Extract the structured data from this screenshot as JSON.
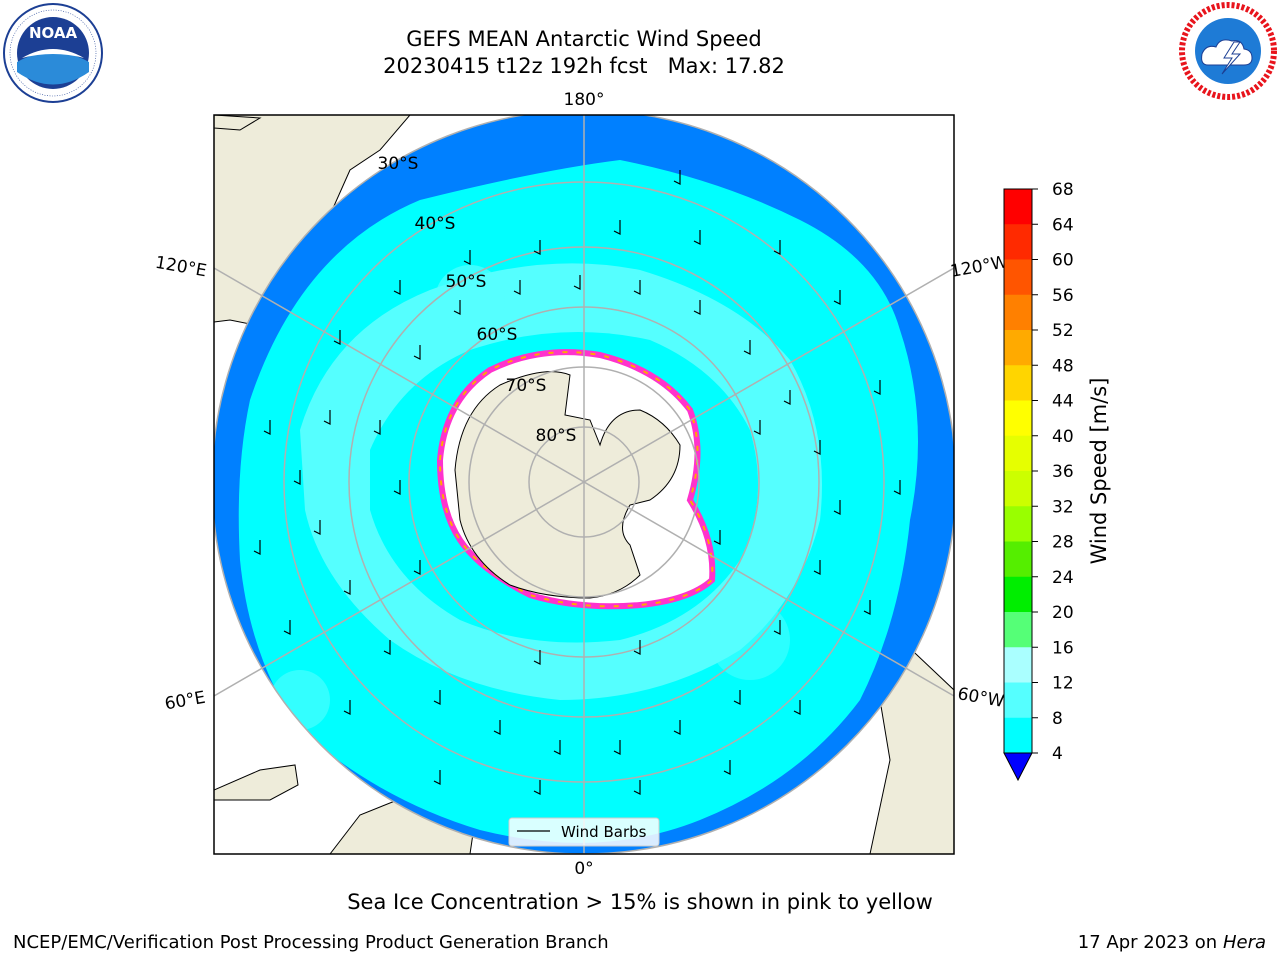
{
  "title": {
    "line1": "GEFS MEAN Antarctic Wind Speed",
    "line2": "20230415 t12z 192h fcst   Max: 17.82"
  },
  "logos": {
    "left": {
      "icon": "noaa-logo",
      "text": "NOAA",
      "ring_text": "NATIONAL OCEANIC AND ATMOSPHERIC ADMINISTRATION · U.S. DEPARTMENT OF COMMERCE"
    },
    "right": {
      "icon": "nws-logo",
      "ring_text": "NATIONAL WEATHER SERVICE"
    }
  },
  "map": {
    "projection": "south-polar-stereographic",
    "longitude_labels": [
      "180°",
      "120°E",
      "120°W",
      "60°E",
      "60°W",
      "0°"
    ],
    "latitude_labels": [
      "30°S",
      "40°S",
      "50°S",
      "60°S",
      "70°S",
      "80°S"
    ],
    "legend": {
      "entry": "Wind Barbs"
    }
  },
  "colorbar": {
    "label": "Wind Speed [m/s]",
    "ticks": [
      "68",
      "64",
      "60",
      "56",
      "52",
      "48",
      "44",
      "40",
      "36",
      "32",
      "28",
      "24",
      "20",
      "16",
      "12",
      "8",
      "4"
    ],
    "colors": [
      "#ff0000",
      "#ff2a00",
      "#ff5500",
      "#ff8000",
      "#ffaa00",
      "#ffd500",
      "#ffff00",
      "#e6ff00",
      "#ccff00",
      "#99ff00",
      "#55ee00",
      "#00ee00",
      "#55ff77",
      "#aaffff",
      "#55ffff",
      "#00ffff",
      "#0080ff"
    ],
    "extend_color": "#0000ff"
  },
  "caption": "Sea Ice Concentration > 15% is shown in pink to yellow",
  "footer": {
    "left": "NCEP/EMC/Verification Post Processing Product Generation Branch",
    "date": "17 Apr 2023 on",
    "machine": "Hera"
  }
}
